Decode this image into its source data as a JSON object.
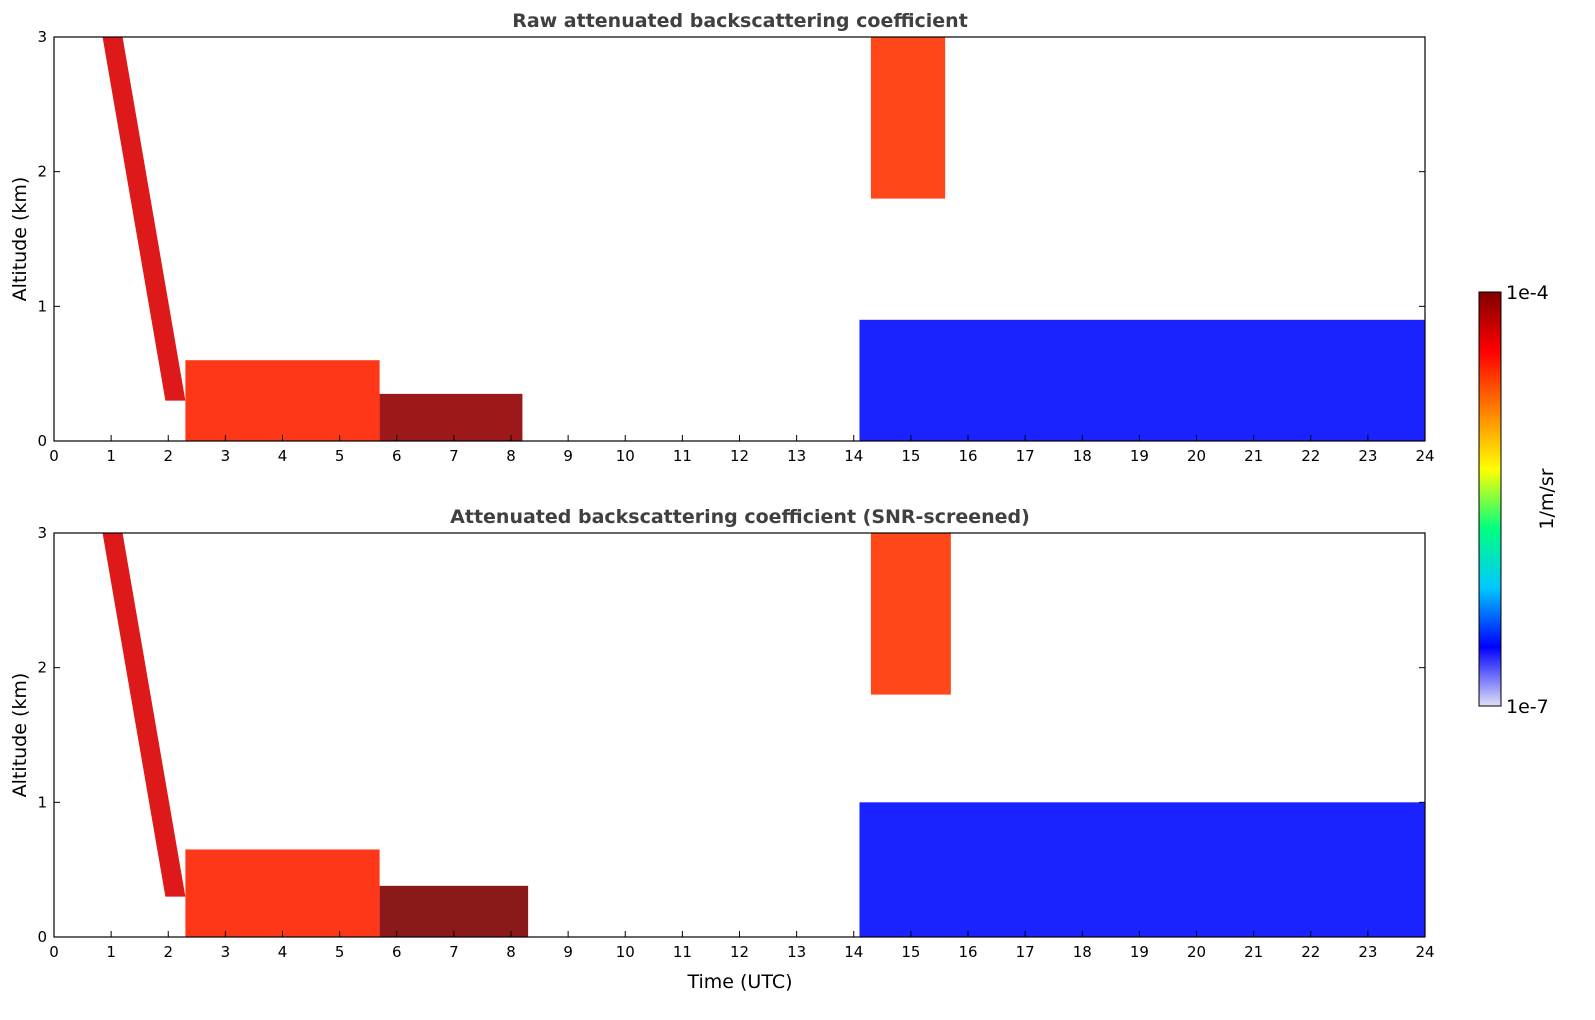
{
  "chart_data": [
    {
      "type": "heatmap",
      "title": "Raw attenuated backscattering coefficient",
      "xlabel": "",
      "ylabel": "Altitude (km)",
      "xlim": [
        0,
        24
      ],
      "ylim": [
        0,
        3
      ],
      "xticks": [
        "0",
        "1",
        "2",
        "3",
        "4",
        "5",
        "6",
        "7",
        "8",
        "9",
        "10",
        "11",
        "12",
        "13",
        "14",
        "15",
        "16",
        "17",
        "18",
        "19",
        "20",
        "21",
        "22",
        "23",
        "24"
      ],
      "yticks": [
        "0",
        "1",
        "2",
        "3"
      ],
      "no_data_intervals_utc": [
        [
          11.3,
          14.1
        ]
      ],
      "features": [
        {
          "name": "descending cloud layer",
          "t_start": 0.85,
          "t_end": 2.3,
          "alt_start_km": 3.0,
          "alt_end_km": 0.3,
          "level": 0.9
        },
        {
          "name": "boundary layer aerosol",
          "t_start": 2.3,
          "t_end": 5.7,
          "alt_top_km": 0.6,
          "level": 0.82
        },
        {
          "name": "saturated near-surface layer",
          "t_start": 5.7,
          "t_end": 8.2,
          "alt_top_km": 0.35,
          "level": 0.98
        },
        {
          "name": "high cloud",
          "t_start": 14.3,
          "t_end": 15.6,
          "alt_bottom_km": 1.8,
          "alt_top_km": 3.0,
          "level": 0.8
        },
        {
          "name": "background aerosol",
          "t_start": 14.1,
          "t_end": 24,
          "alt_top_km": 0.9,
          "level": 0.15
        }
      ]
    },
    {
      "type": "heatmap",
      "title": "Attenuated backscattering coefficient (SNR-screened)",
      "xlabel": "Time (UTC)",
      "ylabel": "Altitude (km)",
      "xlim": [
        0,
        24
      ],
      "ylim": [
        0,
        3
      ],
      "xticks": [
        "0",
        "1",
        "2",
        "3",
        "4",
        "5",
        "6",
        "7",
        "8",
        "9",
        "10",
        "11",
        "12",
        "13",
        "14",
        "15",
        "16",
        "17",
        "18",
        "19",
        "20",
        "21",
        "22",
        "23",
        "24"
      ],
      "yticks": [
        "0",
        "1",
        "2",
        "3"
      ],
      "no_data_intervals_utc": [
        [
          11.3,
          14.1
        ]
      ],
      "features": [
        {
          "name": "descending cloud layer",
          "t_start": 0.85,
          "t_end": 2.3,
          "alt_start_km": 3.0,
          "alt_end_km": 0.3,
          "level": 0.9
        },
        {
          "name": "boundary layer aerosol",
          "t_start": 2.3,
          "t_end": 5.7,
          "alt_top_km": 0.65,
          "level": 0.82
        },
        {
          "name": "saturated near-surface layer",
          "t_start": 5.7,
          "t_end": 8.3,
          "alt_top_km": 0.38,
          "level": 1.0
        },
        {
          "name": "high cloud",
          "t_start": 14.3,
          "t_end": 15.7,
          "alt_bottom_km": 1.8,
          "alt_top_km": 3.0,
          "level": 0.8
        },
        {
          "name": "screened boundary layer",
          "t_start": 14.1,
          "t_end": 24,
          "alt_top_km": 1.0,
          "level": 0.15
        }
      ]
    }
  ],
  "colorbar": {
    "label": "1/m/sr",
    "max_label": "1e-4",
    "min_label": "1e-7",
    "stops": [
      "#e0e0f5",
      "#0000ff",
      "#00c8ff",
      "#00ff80",
      "#ffff00",
      "#ff8000",
      "#ff0000",
      "#800000"
    ]
  }
}
